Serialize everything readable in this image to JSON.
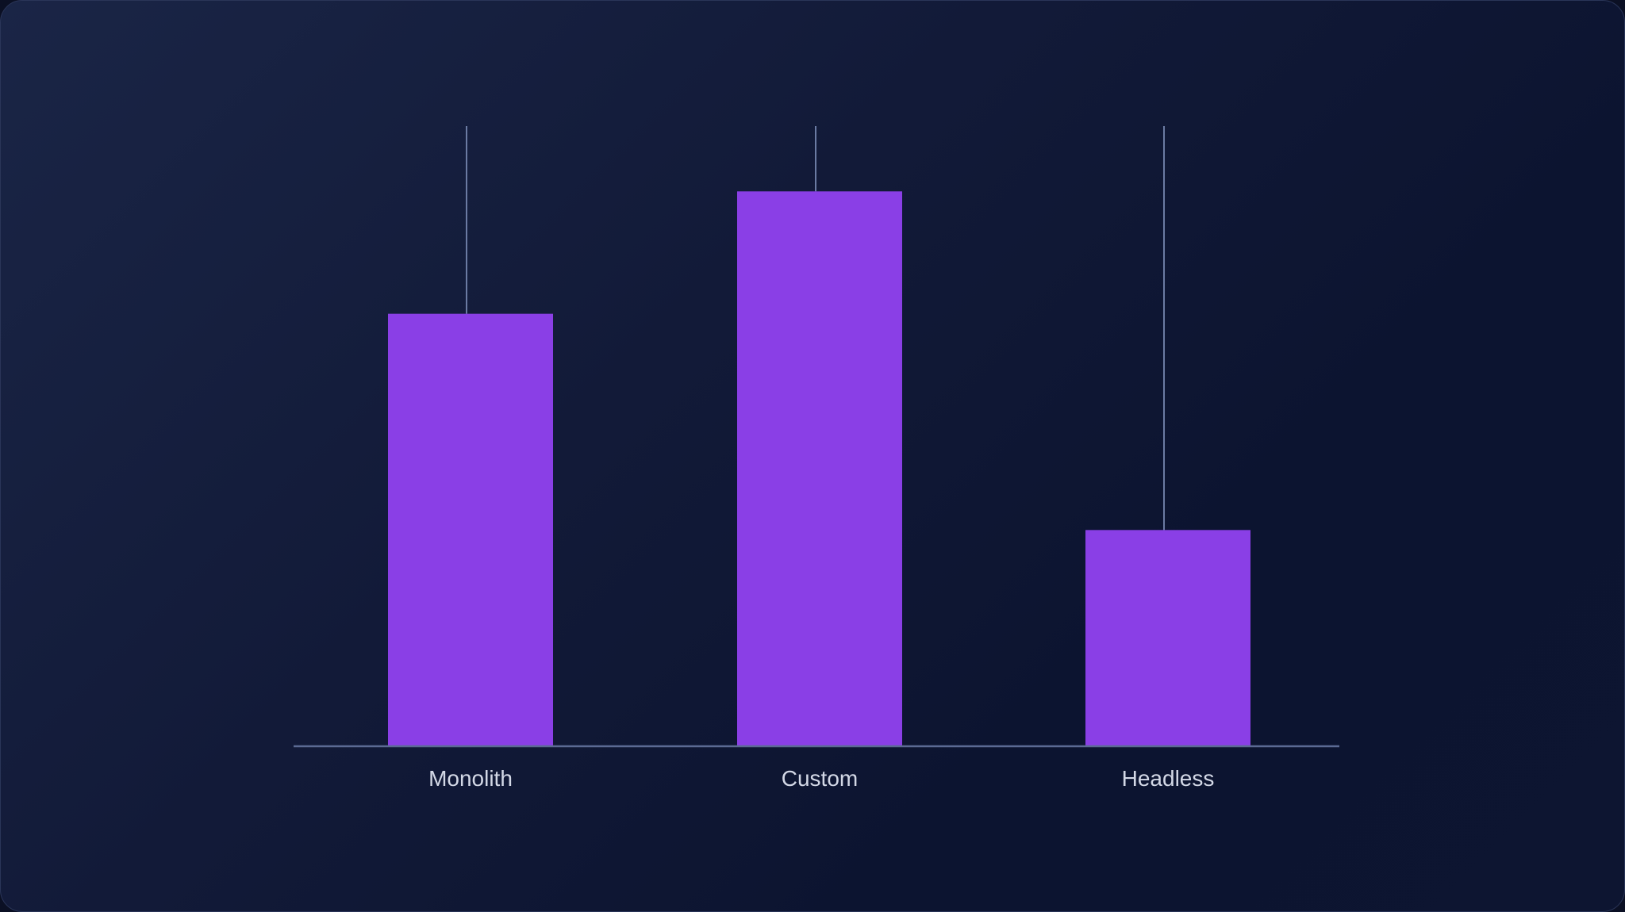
{
  "chart_data": {
    "type": "bar",
    "categories": [
      "Monolith",
      "Custom",
      "Headless"
    ],
    "values": [
      53,
      68,
      26.5
    ],
    "whisker_top": [
      76,
      76,
      76
    ],
    "ylim": [
      0,
      76
    ],
    "title": "",
    "xlabel": "",
    "ylabel": "",
    "grid": false,
    "legend": "none",
    "colors": {
      "bar": "#8a3fe6",
      "whisker": "#6b7ba3",
      "axis": "#5b6a93",
      "label": "#d3d8e6"
    }
  }
}
